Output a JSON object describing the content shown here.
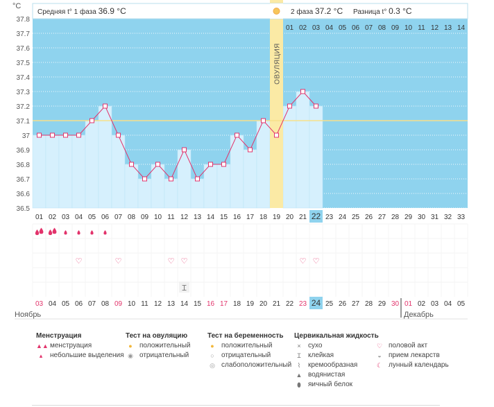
{
  "header": {
    "phase1_label": "Средняя t° 1 фаза",
    "phase1_value": "36.9 °C",
    "phase2_label": "2 фаза",
    "phase2_value": "37.2 °C",
    "diff_label": "Разница t°",
    "diff_value": "0.3 °C",
    "unit": "°C",
    "ovulation_label": "ОВУЛЯЦИЯ"
  },
  "colors": {
    "plot_bg": "#8fd3ee",
    "bar_fill": "#d6f0fd",
    "line": "#e2336b",
    "ovulation_band": "#fbeaa5",
    "coverline": "#f7e08a",
    "highlight": "#8fd3ee",
    "red_text": "#e2336b"
  },
  "chart_data": {
    "type": "line",
    "title": "",
    "ylabel": "°C",
    "ylim": [
      36.5,
      37.8
    ],
    "y_ticks": [
      "36.5",
      "36.6",
      "36.7",
      "36.8",
      "36.9",
      "37",
      "37.1",
      "37.2",
      "37.3",
      "37.4",
      "37.5",
      "37.6",
      "37.7",
      "37.8"
    ],
    "coverline": 37.1,
    "cycle_days": [
      "01",
      "02",
      "03",
      "04",
      "05",
      "06",
      "07",
      "08",
      "09",
      "10",
      "11",
      "12",
      "13",
      "14",
      "15",
      "16",
      "17",
      "18",
      "19",
      "20",
      "21",
      "22",
      "23",
      "24",
      "25",
      "26",
      "27",
      "28",
      "29",
      "30",
      "31",
      "32",
      "33"
    ],
    "temperatures": [
      37.0,
      37.0,
      37.0,
      37.0,
      37.1,
      37.2,
      37.0,
      36.8,
      36.7,
      36.8,
      36.7,
      36.9,
      36.7,
      36.8,
      36.8,
      37.0,
      36.9,
      37.1,
      37.0,
      37.2,
      37.3,
      37.2
    ],
    "ovulation_day": "19",
    "post_ovulation_days": [
      "01",
      "02",
      "03",
      "04",
      "05",
      "06",
      "07",
      "08",
      "09",
      "10",
      "11",
      "12",
      "13",
      "14"
    ],
    "current_day": "22",
    "dates": [
      "03",
      "04",
      "05",
      "06",
      "07",
      "08",
      "09",
      "10",
      "11",
      "12",
      "13",
      "14",
      "15",
      "16",
      "17",
      "18",
      "19",
      "20",
      "21",
      "22",
      "23",
      "24",
      "25",
      "26",
      "27",
      "28",
      "29",
      "30",
      "01",
      "02",
      "03",
      "04",
      "05"
    ],
    "red_dates_idx": [
      0,
      6,
      13,
      14,
      20,
      27,
      28
    ],
    "current_date_idx": 21,
    "month_left": "Ноябрь",
    "month_right": "Декабрь",
    "menstruation_heavy_idx": [
      0,
      1
    ],
    "menstruation_light_idx": [
      2,
      3,
      4,
      5
    ],
    "intercourse_idx": [
      3,
      6,
      10,
      11,
      20,
      21
    ],
    "fluid_sticky_idx": [
      11
    ]
  },
  "legend": {
    "menstruation": {
      "title": "Менструация",
      "items": [
        "менструация",
        "небольшие выделения"
      ]
    },
    "ovulation_test": {
      "title": "Тест на овуляцию",
      "items": [
        "положительный",
        "отрицательный"
      ]
    },
    "pregnancy_test": {
      "title": "Тест на беременность",
      "items": [
        "положительный",
        "отрицательный",
        "слабоположительный"
      ]
    },
    "cervical": {
      "title": "Цервикальная жидкость",
      "items": [
        "сухо",
        "клейкая",
        "кремообразная",
        "водянистая",
        "яичный белок"
      ]
    },
    "other": {
      "items": [
        "половой акт",
        "прием лекарств",
        "лунный календарь"
      ]
    }
  }
}
